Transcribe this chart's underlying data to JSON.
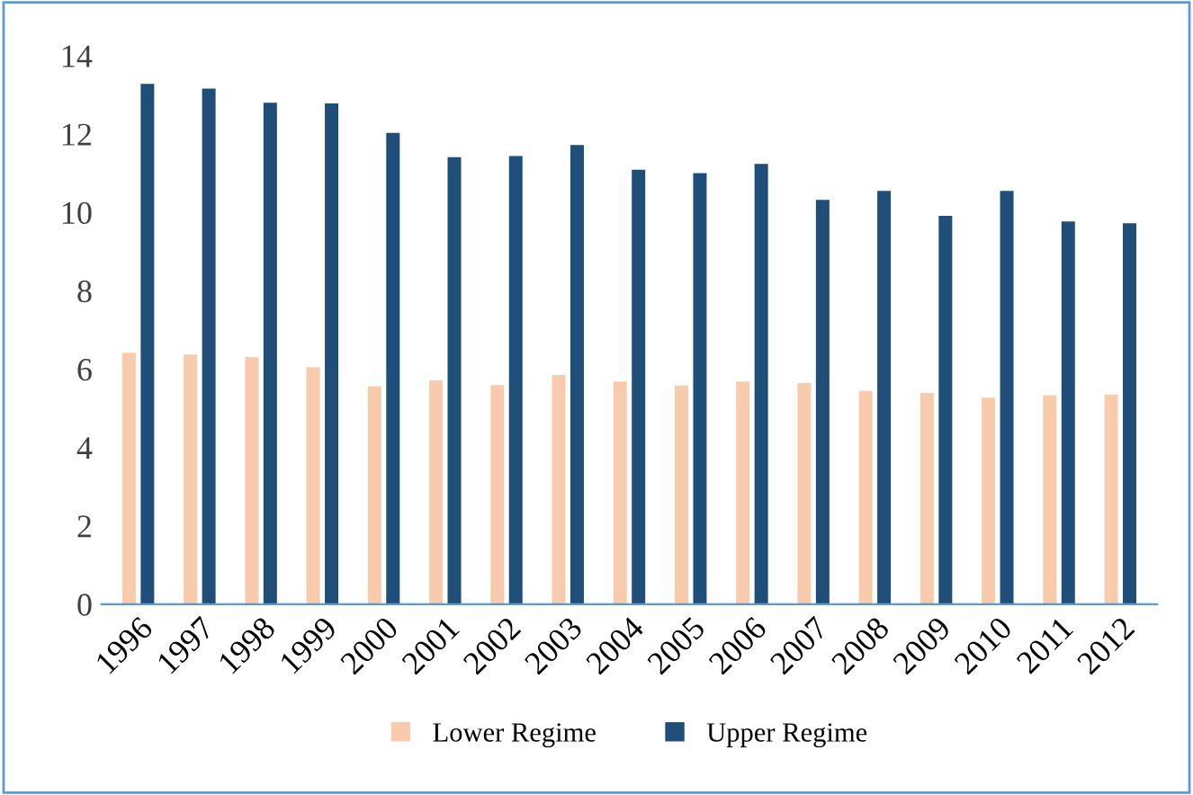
{
  "chart_data": {
    "type": "bar",
    "categories": [
      "1996",
      "1997",
      "1998",
      "1999",
      "2000",
      "2001",
      "2002",
      "2003",
      "2004",
      "2005",
      "2006",
      "2007",
      "2008",
      "2009",
      "2010",
      "2011",
      "2012"
    ],
    "series": [
      {
        "name": "Lower Regime",
        "color": "#f8cbad",
        "values": [
          6.42,
          6.37,
          6.31,
          6.05,
          5.56,
          5.71,
          5.59,
          5.85,
          5.68,
          5.58,
          5.68,
          5.64,
          5.44,
          5.39,
          5.27,
          5.33,
          5.35
        ]
      },
      {
        "name": "Upper Regime",
        "color": "#1f4e79",
        "values": [
          13.28,
          13.16,
          12.8,
          12.78,
          12.03,
          11.41,
          11.44,
          11.72,
          11.09,
          11.0,
          11.24,
          10.32,
          10.55,
          9.91,
          10.55,
          9.77,
          9.72
        ]
      }
    ],
    "ylim": [
      0,
      14
    ],
    "yticks": [
      0,
      2,
      4,
      6,
      8,
      10,
      12,
      14
    ],
    "grid": false,
    "legend": "bottom"
  }
}
